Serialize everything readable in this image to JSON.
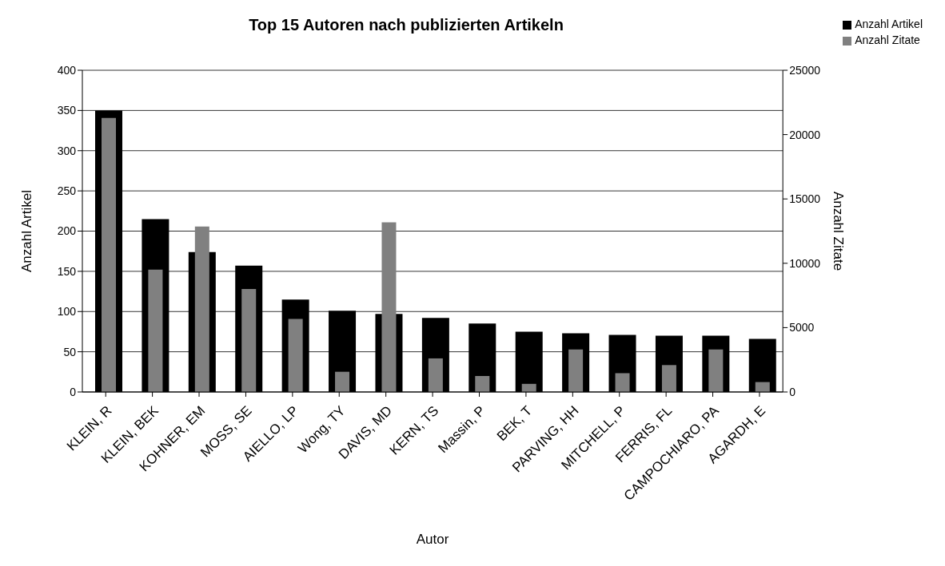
{
  "chart_data": {
    "type": "bar",
    "title": "Top 15 Autoren nach publizierten Artikeln",
    "xlabel": "Autor",
    "ylabel": "Anzahl Artikel",
    "y2label": "Anzahl Zitate",
    "categories": [
      "KLEIN, R",
      "KLEIN, BEK",
      "KOHNER, EM",
      "MOSS, SE",
      "AIELLO, LP",
      "Wong, TY",
      "DAVIS, MD",
      "KERN, TS",
      "Massin, P",
      "BEK, T",
      "PARVING, HH",
      "MITCHELL, P",
      "FERRIS, FL",
      "CAMPOCHIARO, PA",
      "AGARDH, E"
    ],
    "series": [
      {
        "name": "Anzahl Artikel",
        "color": "#000000",
        "values": [
          350,
          215,
          174,
          157,
          115,
          101,
          97,
          92,
          85,
          75,
          73,
          71,
          70,
          70,
          66
        ]
      },
      {
        "name": "Anzahl Zitate",
        "color": "#808080",
        "axis": "y2",
        "values": [
          21300,
          9500,
          12860,
          8010,
          5670,
          1570,
          13180,
          2610,
          1240,
          630,
          3300,
          1460,
          2090,
          3300,
          770
        ]
      }
    ],
    "ylim": [
      0,
      400
    ],
    "yticks": [
      0,
      50,
      100,
      150,
      200,
      250,
      300,
      350,
      400
    ],
    "y2lim": [
      0,
      25000
    ],
    "y2ticks": [
      0,
      5000,
      10000,
      15000,
      20000,
      25000
    ],
    "grid": "y",
    "legend": "top right"
  }
}
